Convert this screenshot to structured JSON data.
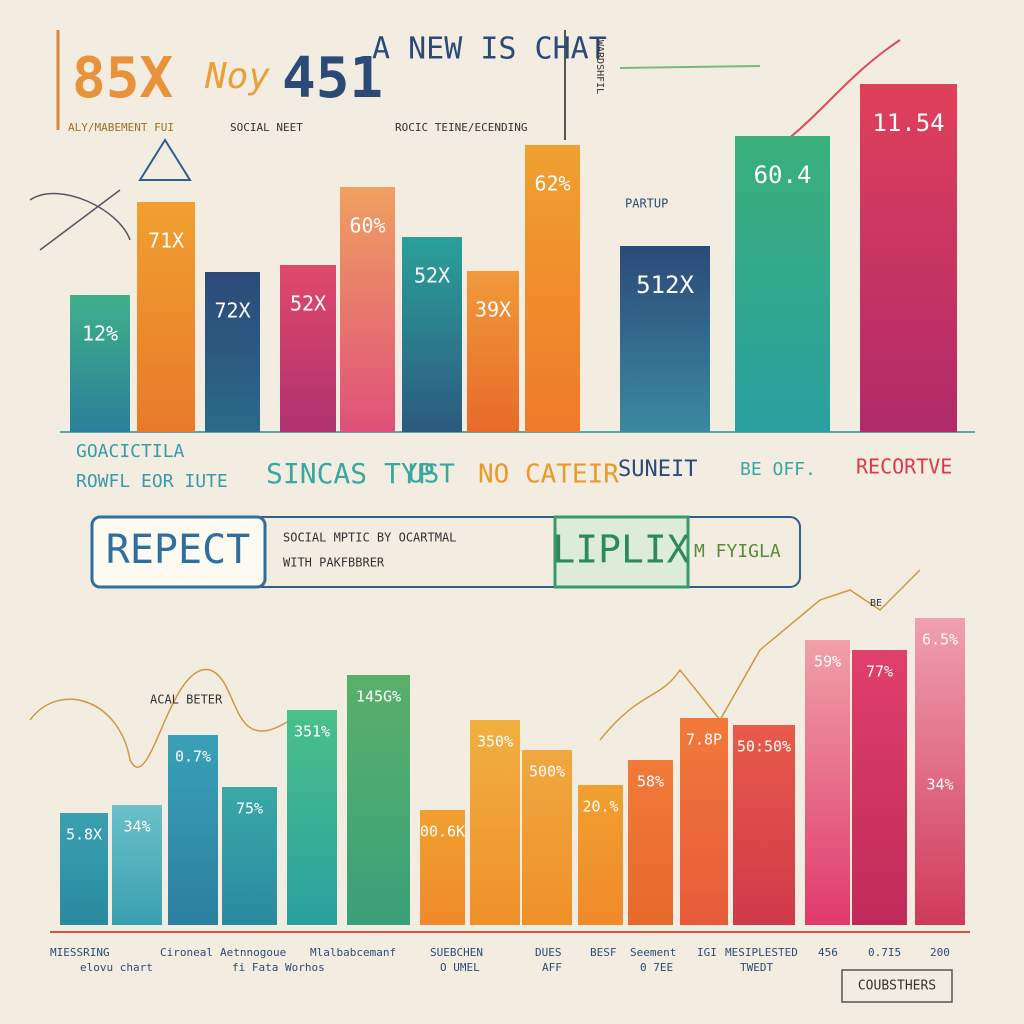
{
  "header": {
    "big_1": "85X",
    "big_2": "Noy",
    "big_3": "451",
    "title": "A NEW IS CHAT",
    "side": "WARDSHFIL",
    "subtitles": [
      "ALY/MABEMENT FUI",
      "SOCIAL NEET",
      "ROCIC TEINE/ECENDING"
    ]
  },
  "top_chart": {
    "bar_labels": [
      "12%",
      "71X",
      "72X",
      "52X",
      "60%",
      "52X",
      "39X",
      "62%",
      "512X",
      "60.4",
      "11.54"
    ],
    "annotation": "PARTUP",
    "categories": [
      "GOACICTILA",
      "ROWFL EOR IUTE",
      "SINCAS TYP",
      "UST",
      "NO CATEIR",
      "SUNEIT",
      "BE OFF.",
      "RECORTVE"
    ]
  },
  "banner": {
    "left": "REPECT",
    "middle_1": "SOCIAL MPTIC BY OCARTMAL",
    "middle_2": "WITH PAKFBBRER",
    "right": "LIPLIX",
    "right_note": "M FYIGLA"
  },
  "bottom_chart": {
    "bar_labels": [
      "5.8X",
      "34%",
      "0.7%",
      "75%",
      "351%",
      "145G%",
      "00.6K",
      "350%",
      "500%",
      "20.%",
      "58%",
      "7.8P",
      "50:50%",
      "59%",
      "77%",
      "6.5%"
    ],
    "extra_label": "34%",
    "annotations": [
      "ACAL BETER",
      "BE"
    ],
    "categories": [
      "MIESSRING",
      "elovu chart",
      "Cironeal",
      "Aetnnogoue",
      "fi Fata Worhos",
      "Mlalbabcemanf",
      "SUEBCHEN",
      "O UMEL",
      "DUES",
      "AFF",
      "BESF",
      "Seement",
      "0 7EE",
      "IGI",
      "MESIPLESTED",
      "TWEDT",
      "456",
      "0.7I5",
      "200"
    ],
    "footer_box": "COUBSTHERS"
  }
}
